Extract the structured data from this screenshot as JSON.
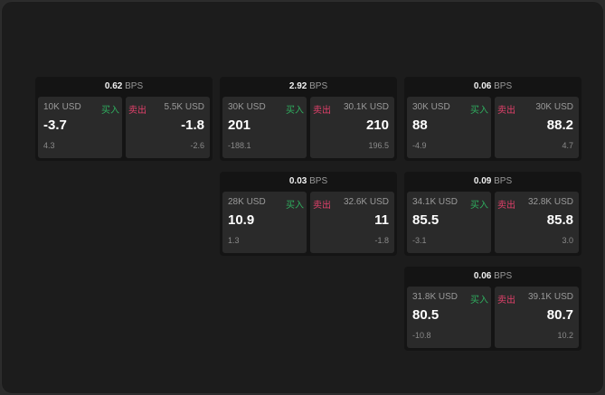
{
  "labels": {
    "unit": "BPS",
    "buy": "买入",
    "sell": "卖出"
  },
  "colors": {
    "buy": "#2fae5f",
    "sell": "#e0406a"
  },
  "grid": [
    [
      {
        "spread": "0.62",
        "bid": {
          "qty": "10K USD",
          "price": "-3.7",
          "change": "4.3"
        },
        "ask": {
          "qty": "5.5K USD",
          "price": "-1.8",
          "change": "-2.6"
        }
      },
      {
        "spread": "2.92",
        "bid": {
          "qty": "30K USD",
          "price": "201",
          "change": "-188.1"
        },
        "ask": {
          "qty": "30.1K USD",
          "price": "210",
          "change": "196.5"
        }
      },
      {
        "spread": "0.06",
        "bid": {
          "qty": "30K USD",
          "price": "88",
          "change": "-4.9"
        },
        "ask": {
          "qty": "30K USD",
          "price": "88.2",
          "change": "4.7"
        }
      }
    ],
    [
      null,
      {
        "spread": "0.03",
        "bid": {
          "qty": "28K USD",
          "price": "10.9",
          "change": "1.3"
        },
        "ask": {
          "qty": "32.6K USD",
          "price": "11",
          "change": "-1.8"
        }
      },
      {
        "spread": "0.09",
        "bid": {
          "qty": "34.1K USD",
          "price": "85.5",
          "change": "-3.1"
        },
        "ask": {
          "qty": "32.8K USD",
          "price": "85.8",
          "change": "3.0"
        }
      }
    ],
    [
      null,
      null,
      {
        "spread": "0.06",
        "bid": {
          "qty": "31.8K USD",
          "price": "80.5",
          "change": "-10.8"
        },
        "ask": {
          "qty": "39.1K USD",
          "price": "80.7",
          "change": "10.2"
        }
      }
    ]
  ]
}
